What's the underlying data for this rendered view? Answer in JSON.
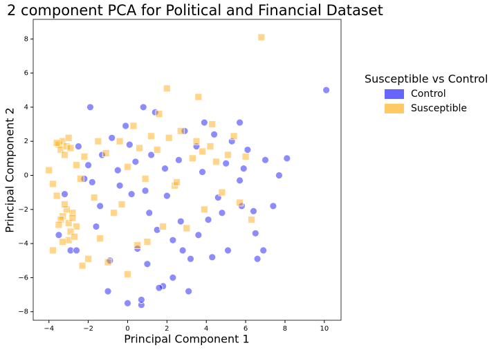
{
  "chart_data": {
    "type": "scatter",
    "title": "2 component PCA for Political and Financial Dataset",
    "x_label": "Principal Component 1",
    "y_label": "Principal Component 2",
    "legend_title": "Susceptible vs Control",
    "legend_position": "outside right",
    "xlim": [
      -4.8,
      10.85
    ],
    "ylim": [
      -8.5,
      9.15
    ],
    "xticks": [
      {
        "value": -4,
        "label": "−4"
      },
      {
        "value": -2,
        "label": "−2"
      },
      0,
      2,
      4,
      6,
      8,
      10
    ],
    "yticks": [
      {
        "value": -8,
        "label": "−8"
      },
      {
        "value": -6,
        "label": "−6"
      },
      {
        "value": -4,
        "label": "−4"
      },
      {
        "value": -2,
        "label": "−2"
      },
      0,
      2,
      4,
      6,
      8
    ],
    "series": [
      {
        "name": "Control",
        "color": "#0000ff",
        "marker": "circle",
        "x": [
          10.1,
          8.1,
          7.7,
          7.4,
          6.6,
          6.5,
          6.9,
          5.7,
          5.8,
          5.3,
          5.1,
          5.9,
          4.8,
          4.4,
          4.1,
          3.9,
          3.6,
          3.2,
          2.9,
          2.6,
          2.3,
          2.0,
          1.8,
          1.4,
          1.1,
          0.8,
          0.5,
          0.2,
          -0.1,
          -0.5,
          -0.9,
          -1.3,
          -1.6,
          -1.9,
          -2.2,
          -2.5,
          -2.9,
          -3.2,
          -3.5,
          0.7,
          0.7,
          0.0,
          -1.0,
          1.6,
          2.3,
          3.1,
          4.3,
          5.7,
          6.4,
          7.0,
          1.2,
          0.4,
          -0.4,
          -1.4,
          -2.0,
          2.7,
          3.5,
          0.9,
          1.9,
          -0.8,
          2.8,
          4.6,
          -1.8,
          0.1,
          1.5,
          3.8,
          -2.6,
          6.1,
          5.0,
          1.0
        ],
        "values": [
          5.0,
          1.0,
          0.0,
          -1.8,
          -4.9,
          -3.4,
          -4.4,
          3.1,
          -1.8,
          2.0,
          -4.4,
          0.4,
          -2.2,
          2.4,
          -2.6,
          3.1,
          -3.5,
          -4.9,
          2.6,
          0.9,
          -3.8,
          -1.2,
          -6.5,
          3.7,
          -2.2,
          4.0,
          -4.3,
          -1.1,
          2.9,
          0.3,
          -5.0,
          1.2,
          -3.0,
          4.0,
          -0.2,
          1.7,
          -4.4,
          -1.1,
          -3.5,
          -7.6,
          -7.3,
          -7.5,
          -6.8,
          -6.6,
          -6.0,
          -6.8,
          -4.8,
          -0.3,
          -2.1,
          0.9,
          1.2,
          0.8,
          -0.6,
          -1.8,
          0.6,
          -2.7,
          1.7,
          -0.9,
          0.4,
          2.2,
          -4.4,
          -1.3,
          -0.4,
          1.8,
          -3.2,
          0.2,
          -4.4,
          1.5,
          0.7,
          -5.2
        ]
      },
      {
        "name": "Susceptible",
        "color": "#ffa500",
        "marker": "square",
        "x": [
          -3.5,
          -3.4,
          -3.3,
          -3.2,
          -3.1,
          -3.0,
          -2.9,
          -3.6,
          -3.3,
          -3.0,
          -2.8,
          -2.6,
          -3.4,
          -3.1,
          -2.9,
          -3.0,
          -2.8,
          -3.2,
          -2.7,
          -3.5,
          -4.0,
          -3.8,
          -3.6,
          -2.4,
          -2.2,
          -2.0,
          -1.7,
          -1.4,
          -1.0,
          -0.7,
          -0.4,
          0.0,
          0.3,
          0.6,
          0.9,
          1.2,
          1.5,
          1.8,
          2.1,
          2.4,
          2.7,
          3.0,
          3.3,
          3.6,
          3.9,
          4.2,
          4.5,
          4.8,
          5.1,
          5.4,
          5.7,
          6.0,
          6.3,
          6.8,
          2.0,
          3.5,
          3.8,
          4.3,
          1.0,
          0.0,
          -1.5,
          -2.3,
          -3.8,
          -3.3,
          -2.6,
          1.6,
          2.5,
          -0.3,
          -1.1,
          0.5
        ],
        "values": [
          1.8,
          1.5,
          2.0,
          1.2,
          1.7,
          2.2,
          1.6,
          1.9,
          -2.4,
          -2.8,
          -2.2,
          -3.0,
          -2.6,
          -2.0,
          -3.3,
          -3.8,
          -2.5,
          -1.7,
          -3.6,
          -2.9,
          0.3,
          -0.5,
          -1.2,
          -0.2,
          1.1,
          -4.9,
          -1.3,
          -3.7,
          -5.1,
          -2.2,
          2.0,
          0.5,
          2.9,
          1.6,
          -0.2,
          2.3,
          1.5,
          -3.0,
          2.2,
          -0.6,
          2.6,
          -3.1,
          1.0,
          4.6,
          -2.0,
          1.7,
          0.8,
          -1.0,
          1.2,
          2.3,
          -1.6,
          1.1,
          -2.6,
          8.1,
          5.1,
          2.0,
          1.4,
          3.0,
          -3.9,
          -5.8,
          2.0,
          -5.3,
          -4.4,
          -3.9,
          0.6,
          3.6,
          -0.4,
          -1.7,
          1.3,
          -4.1
        ]
      }
    ]
  }
}
